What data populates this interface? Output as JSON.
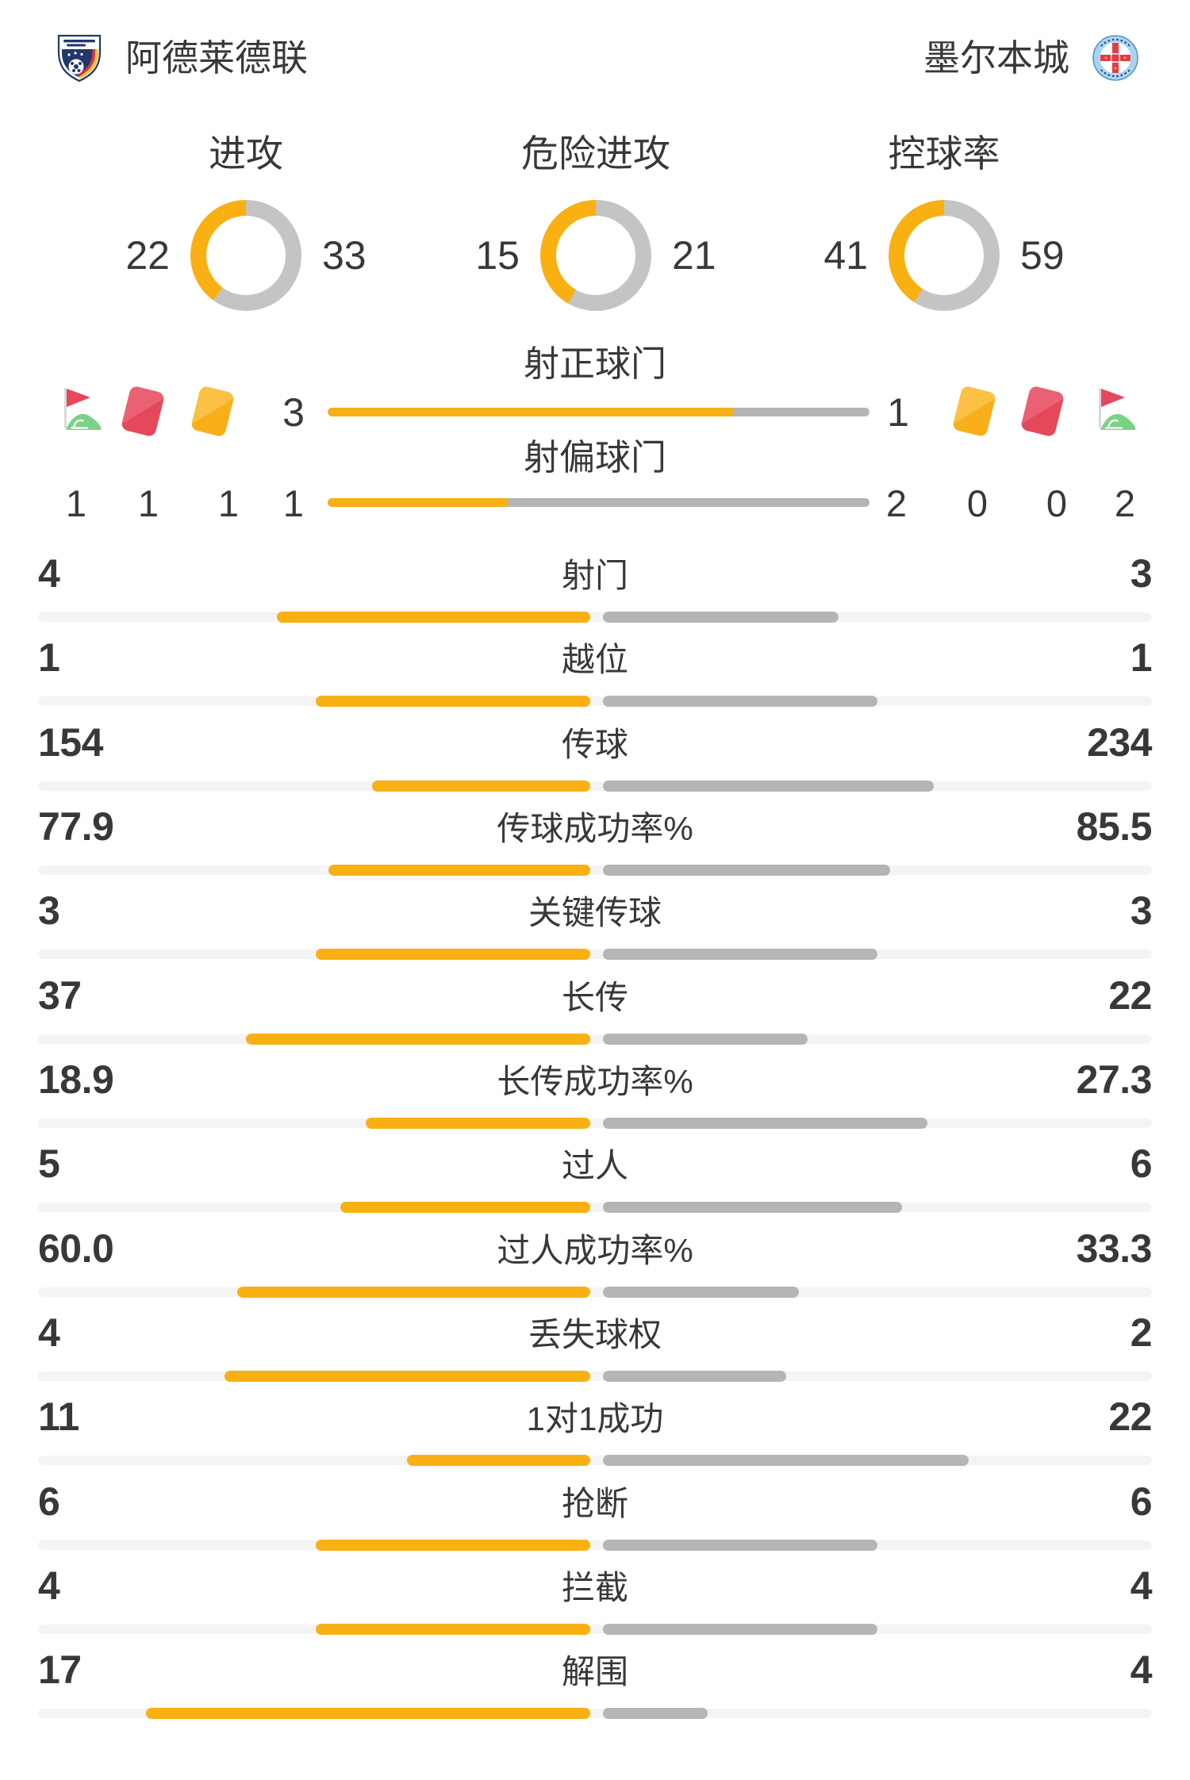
{
  "teams": {
    "home": {
      "name": "阿德莱德联",
      "logo": "adelaide-united-crest"
    },
    "away": {
      "name": "墨尔本城",
      "logo": "melbourne-city-crest"
    }
  },
  "donuts": [
    {
      "label": "进攻",
      "home": 22,
      "away": 33
    },
    {
      "label": "危险进攻",
      "home": 15,
      "away": 21
    },
    {
      "label": "控球率",
      "home": 41,
      "away": 59
    }
  ],
  "cards_section": {
    "shots_on_target": {
      "label": "射正球门",
      "home": "3",
      "away": "1"
    },
    "shots_off_target": {
      "label": "射偏球门",
      "home": "1",
      "away": "2"
    },
    "home_counts": {
      "corner": "1",
      "red": "1",
      "yellow": "1"
    },
    "away_counts": {
      "yellow": "0",
      "red": "0",
      "corner": "2"
    }
  },
  "stats": [
    {
      "label": "射门",
      "home": "4",
      "away": "3"
    },
    {
      "label": "越位",
      "home": "1",
      "away": "1"
    },
    {
      "label": "传球",
      "home": "154",
      "away": "234"
    },
    {
      "label": "传球成功率%",
      "home": "77.9",
      "away": "85.5"
    },
    {
      "label": "关键传球",
      "home": "3",
      "away": "3"
    },
    {
      "label": "长传",
      "home": "37",
      "away": "22"
    },
    {
      "label": "长传成功率%",
      "home": "18.9",
      "away": "27.3"
    },
    {
      "label": "过人",
      "home": "5",
      "away": "6"
    },
    {
      "label": "过人成功率%",
      "home": "60.0",
      "away": "33.3"
    },
    {
      "label": "丢失球权",
      "home": "4",
      "away": "2"
    },
    {
      "label": "1对1成功",
      "home": "11",
      "away": "22"
    },
    {
      "label": "抢断",
      "home": "6",
      "away": "6"
    },
    {
      "label": "拦截",
      "home": "4",
      "away": "4"
    },
    {
      "label": "解围",
      "home": "17",
      "away": "4"
    }
  ],
  "colors": {
    "accent_yellow": "#F9B013",
    "bar_gray": "#B5B5B5",
    "track_gray": "#F4F4F4",
    "donut_gray": "#C4C4C4",
    "text": "#383838",
    "card_red": "#E5475B",
    "card_yellow": "#F8AF1A",
    "flag_green": "#7BD287"
  }
}
